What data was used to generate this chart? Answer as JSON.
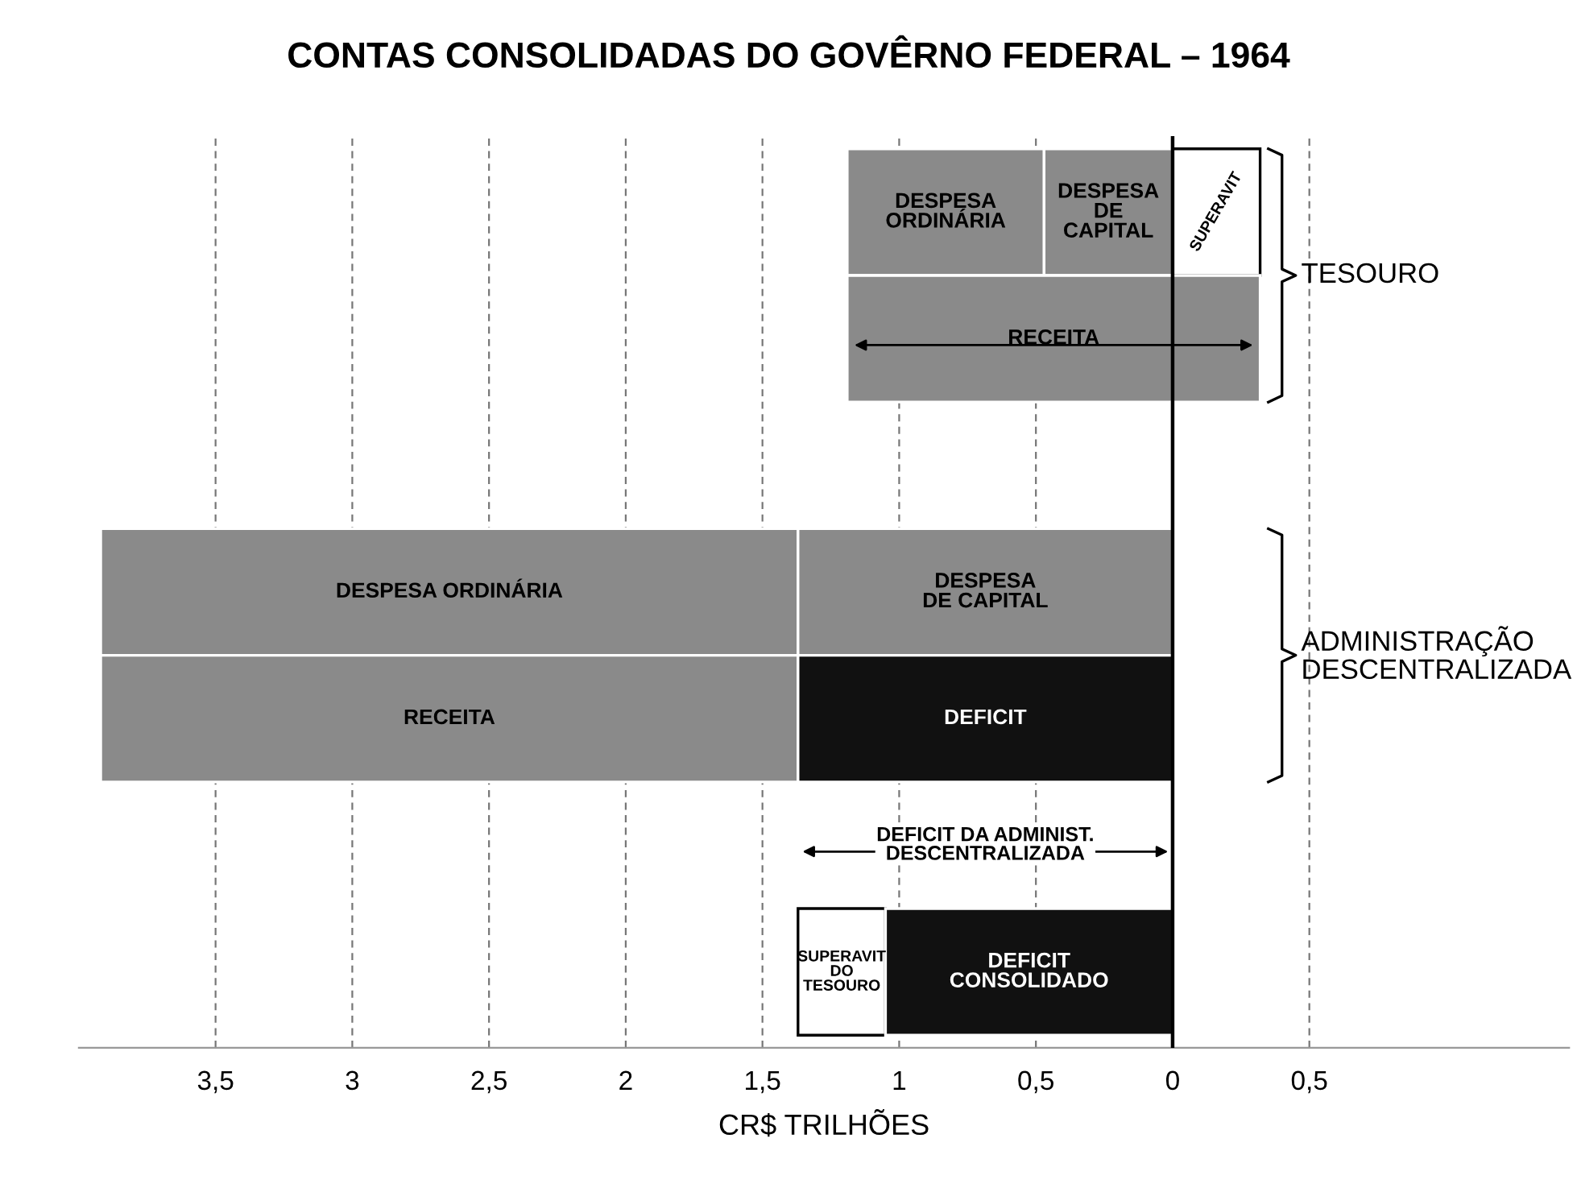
{
  "chart_data": {
    "type": "bar",
    "orientation": "horizontal",
    "title": "CONTAS CONSOLIDADAS DO GOVÊRNO FEDERAL – 1964",
    "xlabel": "CR$ TRILHÕES",
    "categories": [
      null,
      null,
      null,
      null,
      null,
      null,
      null
    ],
    "series": [
      {
        "name": "DESPESA\nORDINÁRIA",
        "color": "#8a8a8a",
        "values": [
          0.72,
          null,
          null,
          null,
          null,
          null,
          null
        ],
        "base": [
          0.47,
          null,
          null,
          null,
          null,
          null,
          null
        ]
      },
      {
        "name": "DESPESA\nDE\nCAPITAL",
        "color": "#8a8a8a",
        "values": [
          0.47,
          null,
          null,
          null,
          null,
          null,
          null
        ],
        "base": [
          0,
          null,
          null,
          null,
          null,
          null,
          null
        ]
      },
      {
        "name": "SUPERAVIT",
        "color": "#ffffff",
        "values": [
          0.32,
          null,
          null,
          null,
          null,
          null,
          null
        ],
        "base": [
          -0.32,
          null,
          null,
          null,
          null,
          null,
          null
        ]
      },
      {
        "name": "RECEITA",
        "color": "#8a8a8a",
        "values": [
          null,
          1.51,
          null,
          null,
          null,
          null,
          null
        ],
        "base": [
          null,
          -0.32,
          null,
          null,
          null,
          null,
          null
        ]
      },
      {
        "name": "DESPESA ORDINÁRIA",
        "color": "#8a8a8a",
        "values": [
          null,
          null,
          null,
          2.55,
          null,
          null,
          null
        ],
        "base": [
          null,
          null,
          null,
          1.37,
          null,
          null,
          null
        ]
      },
      {
        "name": "DESPESA\nDE CAPITAL",
        "color": "#8a8a8a",
        "values": [
          null,
          null,
          null,
          1.37,
          null,
          null,
          null
        ],
        "base": [
          null,
          null,
          null,
          0,
          null,
          null,
          null
        ]
      },
      {
        "name": "RECEITA",
        "color": "#8a8a8a",
        "values": [
          null,
          null,
          null,
          null,
          2.55,
          null,
          null
        ],
        "base": [
          null,
          null,
          null,
          null,
          1.37,
          null,
          null
        ]
      },
      {
        "name": "DEFICIT",
        "color": "#111111",
        "values": [
          null,
          null,
          null,
          null,
          1.37,
          null,
          null
        ],
        "base": [
          null,
          null,
          null,
          null,
          0,
          null,
          null
        ]
      },
      {
        "name": "SUPERAVIT\nDO\nTESOURO",
        "color": "#ffffff",
        "values": [
          null,
          null,
          null,
          null,
          null,
          null,
          0.32
        ],
        "base": [
          null,
          null,
          null,
          null,
          null,
          null,
          1.05
        ]
      },
      {
        "name": "DEFICIT\nCONSOLIDADO",
        "color": "#111111",
        "values": [
          null,
          null,
          null,
          null,
          null,
          null,
          1.05
        ],
        "base": [
          null,
          null,
          null,
          null,
          null,
          null,
          0
        ]
      }
    ],
    "xlim": [
      4.0,
      -1.45
    ],
    "xticks": [
      {
        "value": 3.5,
        "label": "3,5"
      },
      3,
      {
        "value": 2.5,
        "label": "2,5"
      },
      2,
      {
        "value": 1.5,
        "label": "1,5"
      },
      1,
      {
        "value": 0.5,
        "label": "0,5"
      },
      0,
      {
        "value": -0.5,
        "label": "0,5"
      }
    ],
    "grid": "x",
    "ref_lines": [
      {
        "axis": "x",
        "value": 0,
        "color": "#000000",
        "line_style": "solid"
      }
    ],
    "annotations": [
      "TESOURO",
      "ADMINISTRAÇÃO\nDESCENTRALIZADA",
      "DEFICIT DA ADMINIST.\nDESCENTRALIZADA"
    ],
    "legend": false
  }
}
